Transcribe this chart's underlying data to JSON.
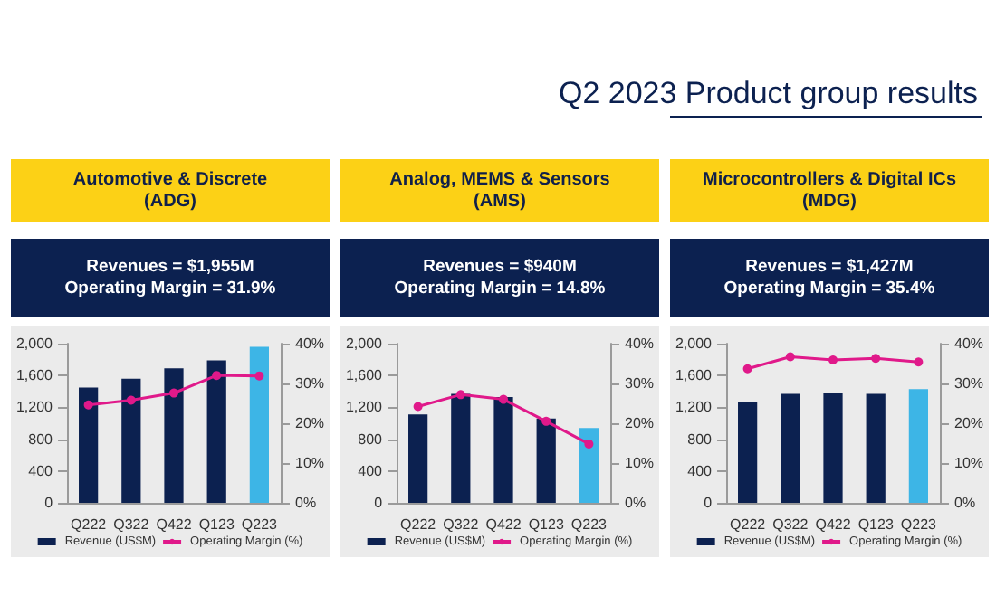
{
  "chart_data": [
    {
      "type": "bar",
      "annotations": [
        "Q2 2023 Product group results"
      ],
      "title": "Automotive & Discrete\n(ADG)",
      "subtitle": "Revenues = $1,955M\nOperating Margin = 31.9%",
      "categories": [
        "Q222",
        "Q322",
        "Q422",
        "Q123",
        "Q223"
      ],
      "series": [
        {
          "name": "Revenue (US$M)",
          "colors": [
            "#0c2150",
            "#0c2150",
            "#0c2150",
            "#0c2150",
            "#3db5e6"
          ],
          "values": [
            1450,
            1560,
            1690,
            1790,
            1960
          ]
        },
        {
          "name": "Operating Margin (%)",
          "type": "line",
          "axis": "y2",
          "color": "#e0198a",
          "values": [
            24.6,
            25.8,
            27.6,
            32.0,
            31.9
          ]
        }
      ],
      "ylim": [
        0,
        2000
      ],
      "yticks": [
        0,
        400,
        800,
        {
          "value": 1200,
          "label": "1,200"
        },
        {
          "value": 1600,
          "label": "1,600"
        },
        {
          "value": 2000,
          "label": "2,000"
        }
      ],
      "y2lim": [
        0,
        40
      ],
      "y2ticks": [
        {
          "value": 0,
          "label": "0%"
        },
        {
          "value": 10,
          "label": "10%"
        },
        {
          "value": 20,
          "label": "20%"
        },
        {
          "value": 30,
          "label": "30%"
        },
        {
          "value": 40,
          "label": "40%"
        }
      ],
      "grid": false,
      "legend": "bottom",
      "marker": "circle"
    },
    {
      "type": "bar",
      "title": "Analog, MEMS & Sensors\n(AMS)",
      "subtitle": "Revenues = $940M\nOperating Margin = 14.8%",
      "categories": [
        "Q222",
        "Q322",
        "Q422",
        "Q123",
        "Q223"
      ],
      "series": [
        {
          "name": "Revenue (US$M)",
          "colors": [
            "#0c2150",
            "#0c2150",
            "#0c2150",
            "#0c2150",
            "#3db5e6"
          ],
          "values": [
            1110,
            1370,
            1330,
            1060,
            940
          ]
        },
        {
          "name": "Operating Margin (%)",
          "type": "line",
          "axis": "y2",
          "color": "#e0198a",
          "values": [
            24.2,
            27.2,
            26.0,
            20.5,
            14.8
          ]
        }
      ],
      "ylim": [
        0,
        2000
      ],
      "yticks": [
        0,
        400,
        800,
        {
          "value": 1200,
          "label": "1,200"
        },
        {
          "value": 1600,
          "label": "1,600"
        },
        {
          "value": 2000,
          "label": "2,000"
        }
      ],
      "y2lim": [
        0,
        40
      ],
      "y2ticks": [
        {
          "value": 0,
          "label": "0%"
        },
        {
          "value": 10,
          "label": "10%"
        },
        {
          "value": 20,
          "label": "20%"
        },
        {
          "value": 30,
          "label": "30%"
        },
        {
          "value": 40,
          "label": "40%"
        }
      ],
      "grid": false,
      "legend": "bottom",
      "marker": "circle"
    },
    {
      "type": "bar",
      "title": "Microcontrollers & Digital ICs\n(MDG)",
      "subtitle": "Revenues = $1,427M\nOperating Margin = 35.4%",
      "categories": [
        "Q222",
        "Q322",
        "Q422",
        "Q123",
        "Q223"
      ],
      "series": [
        {
          "name": "Revenue (US$M)",
          "colors": [
            "#0c2150",
            "#0c2150",
            "#0c2150",
            "#0c2150",
            "#3db5e6"
          ],
          "values": [
            1260,
            1370,
            1380,
            1370,
            1430
          ]
        },
        {
          "name": "Operating Margin (%)",
          "type": "line",
          "axis": "y2",
          "color": "#e0198a",
          "values": [
            33.7,
            36.7,
            35.9,
            36.3,
            35.4
          ]
        }
      ],
      "ylim": [
        0,
        2000
      ],
      "yticks": [
        0,
        400,
        800,
        {
          "value": 1200,
          "label": "1,200"
        },
        {
          "value": 1600,
          "label": "1,600"
        },
        {
          "value": 2000,
          "label": "2,000"
        }
      ],
      "y2lim": [
        0,
        40
      ],
      "y2ticks": [
        {
          "value": 0,
          "label": "0%"
        },
        {
          "value": 10,
          "label": "10%"
        },
        {
          "value": 20,
          "label": "20%"
        },
        {
          "value": 30,
          "label": "30%"
        },
        {
          "value": 40,
          "label": "40%"
        }
      ],
      "grid": false,
      "legend": "bottom",
      "marker": "circle"
    }
  ]
}
